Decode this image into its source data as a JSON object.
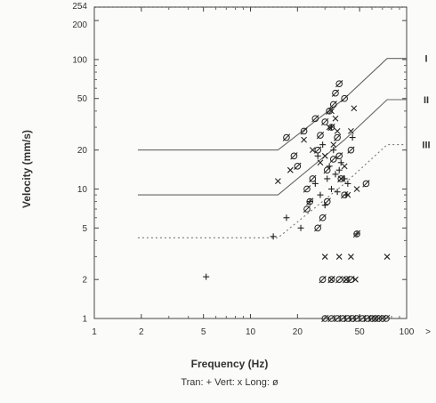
{
  "chart_data": {
    "type": "scatter",
    "title": "",
    "xlabel": "Frequency (Hz)",
    "ylabel": "Velocity (mm/s)",
    "x_scale": "log",
    "y_scale": "log",
    "xlim": [
      1,
      100
    ],
    "ylim": [
      1,
      254
    ],
    "x_ticks": [
      {
        "value": 1,
        "label": "1"
      },
      {
        "value": 2,
        "label": "2"
      },
      {
        "value": 5,
        "label": "5"
      },
      {
        "value": 10,
        "label": "10"
      },
      {
        "value": 20,
        "label": "20"
      },
      {
        "value": 50,
        "label": "50"
      },
      {
        "value": 100,
        "label": "100"
      }
    ],
    "x_over_label": ">",
    "y_ticks": [
      {
        "value": 1,
        "label": "1"
      },
      {
        "value": 2,
        "label": "2"
      },
      {
        "value": 5,
        "label": "5"
      },
      {
        "value": 10,
        "label": "10"
      },
      {
        "value": 20,
        "label": "20"
      },
      {
        "value": 50,
        "label": "50"
      },
      {
        "value": 100,
        "label": "100"
      },
      {
        "value": 200,
        "label": "200"
      },
      {
        "value": 254,
        "label": "254"
      }
    ],
    "grid": false,
    "legend_text": "Tran: +  Vert: x  Long: ø",
    "legend_position": "bottom",
    "limit_curves": [
      {
        "name": "I",
        "style": "solid",
        "x": [
          1.9,
          15,
          40,
          75,
          100
        ],
        "y": [
          20,
          20,
          50,
          102,
          102
        ]
      },
      {
        "name": "II",
        "style": "solid",
        "x": [
          1.9,
          15,
          40,
          75,
          100
        ],
        "y": [
          9,
          9,
          24,
          49,
          49
        ]
      },
      {
        "name": "III",
        "style": "dotted",
        "x": [
          1.9,
          15,
          40,
          75,
          100
        ],
        "y": [
          4.2,
          4.2,
          11,
          22,
          22
        ]
      }
    ],
    "series": [
      {
        "name": "Tran",
        "marker": "+",
        "x": [
          5.2,
          14,
          17,
          21,
          24,
          26,
          28,
          30,
          31,
          32,
          33,
          34,
          35,
          36,
          38,
          40,
          42,
          45,
          27,
          29,
          33,
          37,
          41,
          48
        ],
        "y": [
          2.1,
          4.3,
          6,
          5,
          8,
          11,
          9,
          7.5,
          12,
          15,
          10,
          20,
          13,
          9.5,
          16,
          12,
          11,
          25,
          18,
          22,
          30,
          14,
          9,
          4.5
        ]
      },
      {
        "name": "Vert",
        "marker": "x",
        "x": [
          15,
          18,
          22,
          25,
          28,
          30,
          32,
          33,
          34,
          35,
          36,
          38,
          40,
          42,
          44,
          46,
          48,
          75,
          30,
          33,
          37,
          41,
          44,
          47
        ],
        "y": [
          11.5,
          14,
          24,
          20,
          16,
          18,
          30,
          40,
          22,
          35,
          28,
          12,
          15,
          9,
          28,
          42,
          10,
          3,
          3,
          2,
          3,
          2,
          3,
          2
        ]
      },
      {
        "name": "Long",
        "marker": "circle",
        "x": [
          17,
          19,
          20,
          22,
          23,
          24,
          25,
          26,
          27,
          28,
          29,
          30,
          31,
          32,
          33,
          34,
          35,
          36,
          37,
          38,
          40,
          55,
          23,
          27,
          31,
          34,
          37,
          40,
          44,
          48,
          52,
          56,
          60,
          63,
          66,
          70,
          74,
          30,
          33,
          36,
          39,
          42,
          45,
          48,
          29,
          33,
          37,
          41,
          44
        ],
        "y": [
          25,
          18,
          15,
          28,
          10,
          8,
          12,
          35,
          20,
          26,
          6,
          33,
          14,
          40,
          30,
          45,
          55,
          25,
          18,
          12,
          9,
          11,
          7,
          5,
          8,
          17,
          65,
          50,
          20,
          4.5,
          1,
          1,
          1,
          1,
          1,
          1,
          1,
          1,
          1,
          1,
          1,
          1,
          1,
          1,
          2,
          2,
          2,
          2,
          2
        ]
      }
    ]
  }
}
